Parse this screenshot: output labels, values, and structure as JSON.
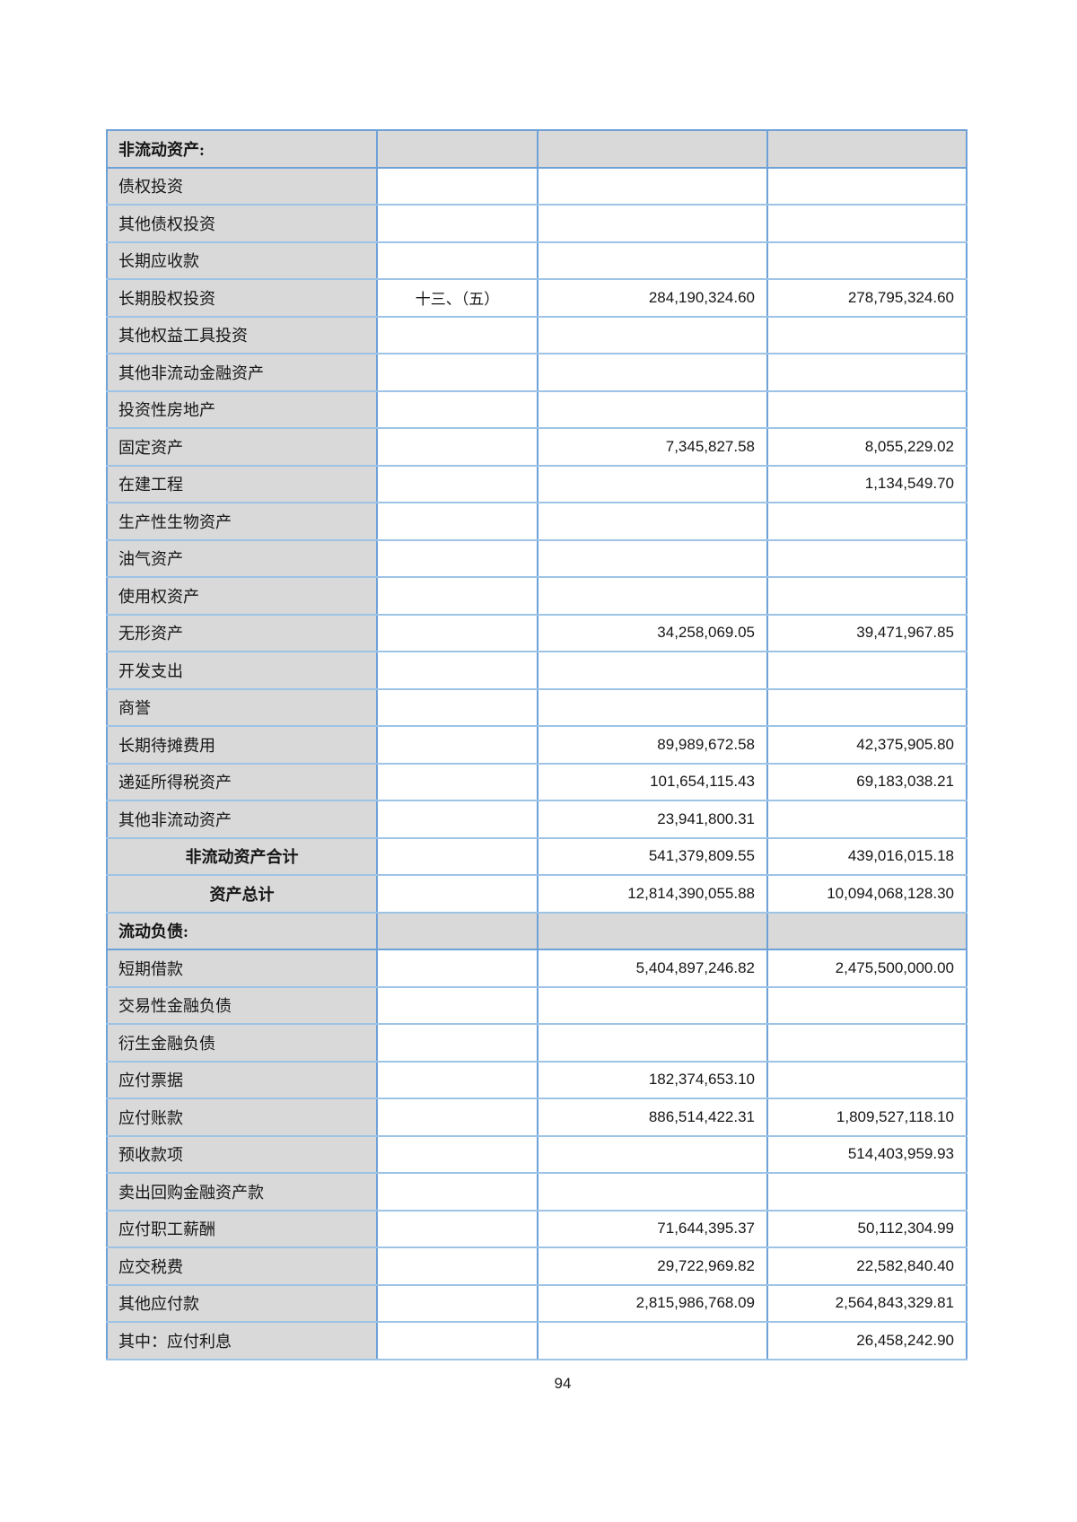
{
  "colors": {
    "grid_vertical_blue": "#6FA1D9",
    "grid_horizontal_blue": "#9DC3E6",
    "cell_gray": "#D9D9D9",
    "text": "#161616"
  },
  "footer": {
    "page_number": "94"
  },
  "table": {
    "rows": [
      {
        "type": "section",
        "label": "非流动资产:"
      },
      {
        "type": "item",
        "label": "债权投资"
      },
      {
        "type": "item",
        "label": "其他债权投资"
      },
      {
        "type": "item",
        "label": "长期应收款"
      },
      {
        "type": "item",
        "label": "长期股权投资",
        "note": "十三、（五）",
        "current": "284,190,324.60",
        "previous": "278,795,324.60"
      },
      {
        "type": "item",
        "label": "其他权益工具投资"
      },
      {
        "type": "item",
        "label": "其他非流动金融资产"
      },
      {
        "type": "item",
        "label": "投资性房地产"
      },
      {
        "type": "item",
        "label": "固定资产",
        "current": "7,345,827.58",
        "previous": "8,055,229.02"
      },
      {
        "type": "item",
        "label": "在建工程",
        "previous": "1,134,549.70"
      },
      {
        "type": "item",
        "label": "生产性生物资产"
      },
      {
        "type": "item",
        "label": "油气资产"
      },
      {
        "type": "item",
        "label": "使用权资产"
      },
      {
        "type": "item",
        "label": "无形资产",
        "current": "34,258,069.05",
        "previous": "39,471,967.85"
      },
      {
        "type": "item",
        "label": "开发支出"
      },
      {
        "type": "item",
        "label": "商誉"
      },
      {
        "type": "item",
        "label": "长期待摊费用",
        "current": "89,989,672.58",
        "previous": "42,375,905.80"
      },
      {
        "type": "item",
        "label": "递延所得税资产",
        "current": "101,654,115.43",
        "previous": "69,183,038.21"
      },
      {
        "type": "item",
        "label": "其他非流动资产",
        "current": "23,941,800.31"
      },
      {
        "type": "total",
        "label": "非流动资产合计",
        "current": "541,379,809.55",
        "previous": "439,016,015.18"
      },
      {
        "type": "total",
        "label": "资产总计",
        "current": "12,814,390,055.88",
        "previous": "10,094,068,128.30"
      },
      {
        "type": "section",
        "label": "流动负债:"
      },
      {
        "type": "item",
        "label": "短期借款",
        "current": "5,404,897,246.82",
        "previous": "2,475,500,000.00"
      },
      {
        "type": "item",
        "label": "交易性金融负债"
      },
      {
        "type": "item",
        "label": "衍生金融负债"
      },
      {
        "type": "item",
        "label": "应付票据",
        "current": "182,374,653.10"
      },
      {
        "type": "item",
        "label": "应付账款",
        "current": "886,514,422.31",
        "previous": "1,809,527,118.10"
      },
      {
        "type": "item",
        "label": "预收款项",
        "previous": "514,403,959.93"
      },
      {
        "type": "item",
        "label": "卖出回购金融资产款"
      },
      {
        "type": "item",
        "label": "应付职工薪酬",
        "current": "71,644,395.37",
        "previous": "50,112,304.99"
      },
      {
        "type": "item",
        "label": "应交税费",
        "current": "29,722,969.82",
        "previous": "22,582,840.40"
      },
      {
        "type": "item",
        "label": "其他应付款",
        "current": "2,815,986,768.09",
        "previous": "2,564,843,329.81"
      },
      {
        "type": "item",
        "label": "其中：应付利息",
        "previous": "26,458,242.90"
      }
    ]
  }
}
